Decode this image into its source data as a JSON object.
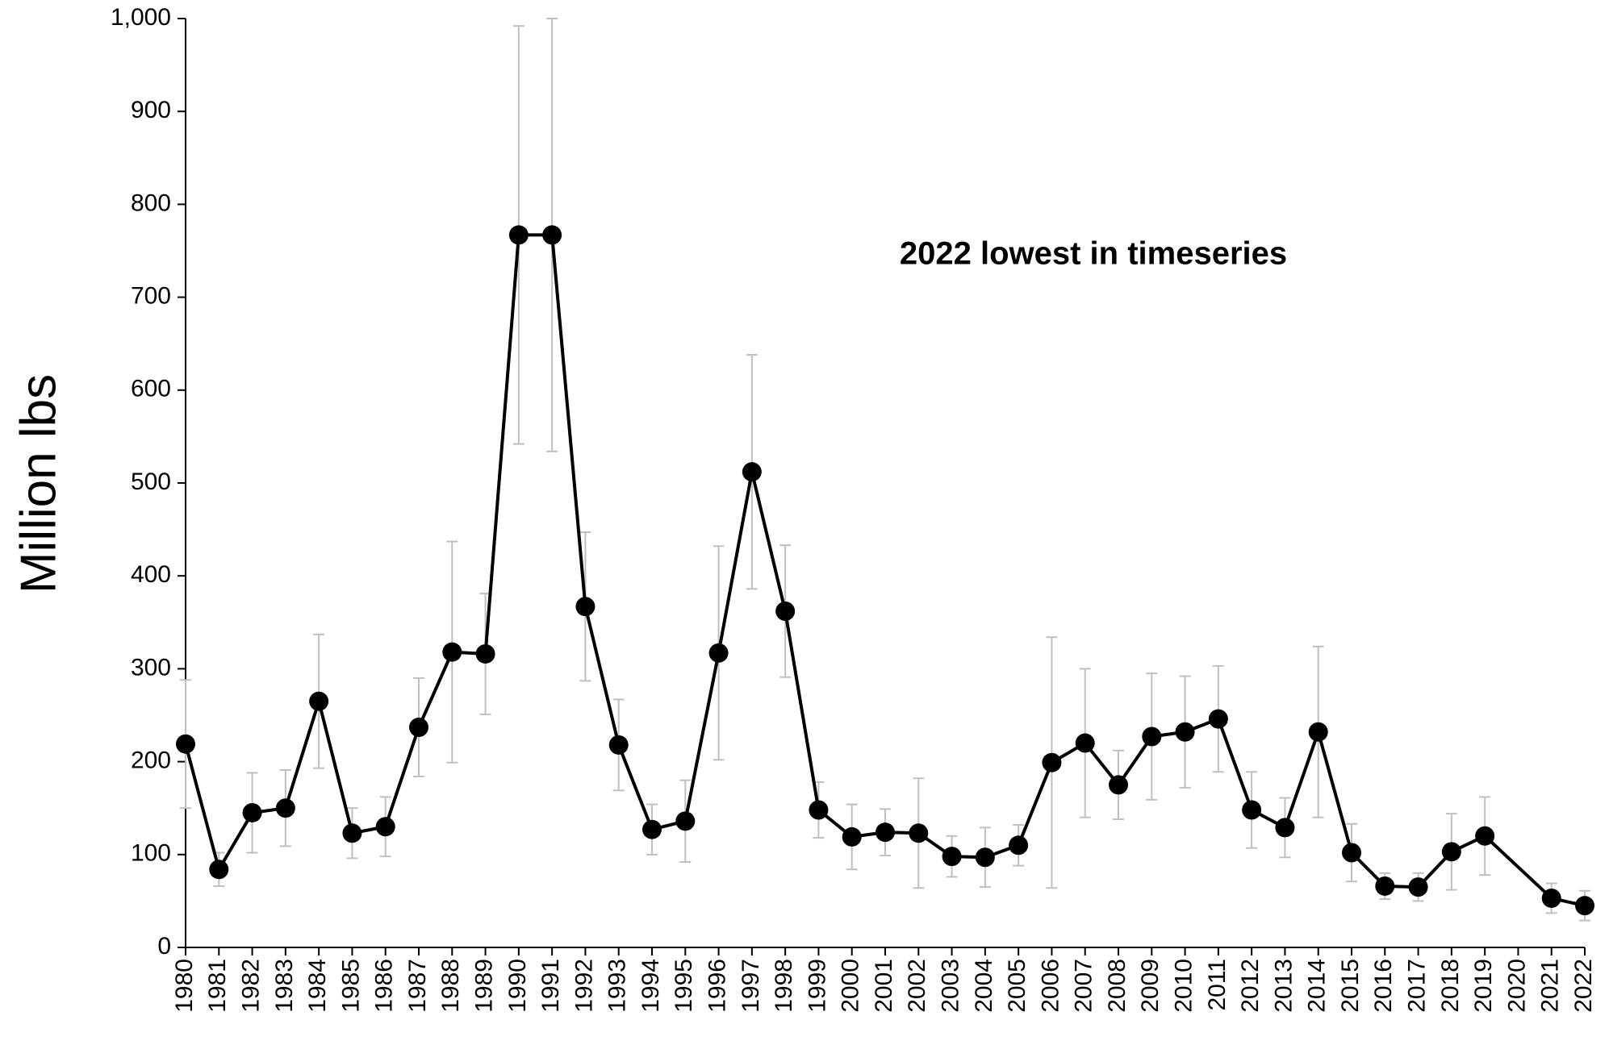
{
  "chart_data": {
    "type": "line",
    "y_label": "Million lbs",
    "annotation": "2022 lowest in timeseries",
    "annotation_color": "#ff0000",
    "categories": [
      "1980",
      "1981",
      "1982",
      "1983",
      "1984",
      "1985",
      "1986",
      "1987",
      "1988",
      "1989",
      "1990",
      "1991",
      "1992",
      "1993",
      "1994",
      "1995",
      "1996",
      "1997",
      "1998",
      "1999",
      "2000",
      "2001",
      "2002",
      "2003",
      "2004",
      "2005",
      "2006",
      "2007",
      "2008",
      "2009",
      "2010",
      "2011",
      "2012",
      "2013",
      "2014",
      "2015",
      "2016",
      "2017",
      "2018",
      "2019",
      "2020",
      "2021",
      "2022"
    ],
    "series": [
      {
        "color": "#000000",
        "values": [
          219,
          84,
          145,
          150,
          265,
          123,
          130,
          237,
          318,
          316,
          767,
          767,
          367,
          218,
          127,
          136,
          317,
          512,
          362,
          148,
          119,
          124,
          123,
          98,
          97,
          110,
          199,
          220,
          175,
          227,
          232,
          246,
          148,
          129,
          232,
          102,
          66,
          65,
          103,
          120,
          null,
          53,
          45
        ],
        "errors": [
          69,
          18,
          43,
          41,
          72,
          27,
          32,
          53,
          119,
          65,
          225,
          233,
          80,
          49,
          27,
          44,
          115,
          126,
          71,
          30,
          35,
          25,
          59,
          22,
          32,
          22,
          135,
          80,
          37,
          68,
          60,
          57,
          41,
          32,
          92,
          31,
          14,
          15,
          41,
          42,
          null,
          16,
          16
        ],
        "error_color": "#bfbfbf"
      }
    ],
    "ylim": [
      0,
      1000
    ],
    "yticks": [
      0,
      100,
      200,
      300,
      400,
      500,
      600,
      700,
      800,
      900,
      {
        "value": 1000,
        "label": "1,000"
      }
    ]
  }
}
